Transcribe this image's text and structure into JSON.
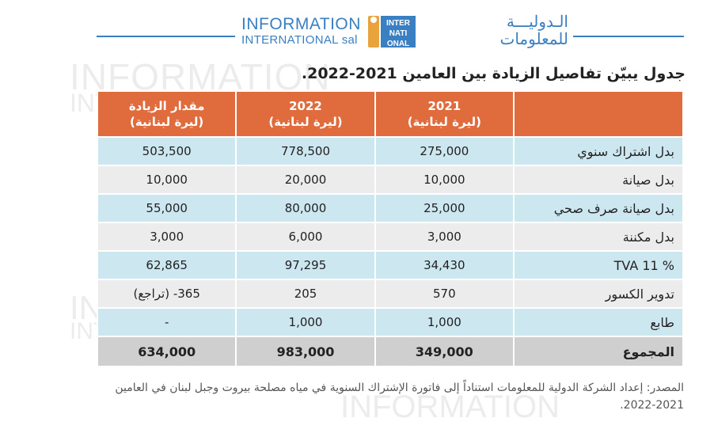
{
  "watermark": {
    "line1": "INFORMATION",
    "line2": "INTERNATIONAL sal"
  },
  "logo": {
    "en_line1": "INFORMATION",
    "en_line2": "INTERNATIONAL sal",
    "mark_text": "INTER NATI ONAL",
    "ar_line1": "الـدوليـــة",
    "ar_line2": "للمعلومات"
  },
  "title": "جدول يبيّن تفاصيل الزيادة بين العامين 2021-2022.",
  "table": {
    "headers": [
      {
        "line1": "",
        "line2": ""
      },
      {
        "line1": "2021",
        "line2": "(ليرة لبنانية)"
      },
      {
        "line1": "2022",
        "line2": "(ليرة لبنانية)"
      },
      {
        "line1": "مقدار الزيادة",
        "line2": "(ليرة لبنانية)"
      }
    ],
    "rows": [
      {
        "label": "بدل اشتراك سنوي",
        "y2021": "275,000",
        "y2022": "778,500",
        "increase": "503,500"
      },
      {
        "label": "بدل صيانة",
        "y2021": "10,000",
        "y2022": "20,000",
        "increase": "10,000"
      },
      {
        "label": "بدل صيانة صرف صحي",
        "y2021": "25,000",
        "y2022": "80,000",
        "increase": "55,000"
      },
      {
        "label": "بدل مكننة",
        "y2021": "3,000",
        "y2022": "6,000",
        "increase": "3,000"
      },
      {
        "label": "TVA 11 %",
        "y2021": "34,430",
        "y2022": "97,295",
        "increase": "62,865"
      },
      {
        "label": "تدوير الكسور",
        "y2021": "570",
        "y2022": "205",
        "increase": "365- (تراجع)"
      },
      {
        "label": "طابع",
        "y2021": "1,000",
        "y2022": "1,000",
        "increase": "-"
      }
    ],
    "total": {
      "label": "المجموع",
      "y2021": "349,000",
      "y2022": "983,000",
      "increase": "634,000"
    }
  },
  "source_text": "المصدر: إعداد الشركة الدولية للمعلومات استناداً إلى فاتورة الإشتراك السنوية في مياه مصلحة بيروت وجبل لبنان في العامين 2021-2022.",
  "colors": {
    "accent_blue": "#3a7fc1",
    "header_orange": "#e06c3e",
    "row_blue": "#cde7f0",
    "row_grey": "#ececec",
    "total_grey": "#cfcfcf"
  }
}
